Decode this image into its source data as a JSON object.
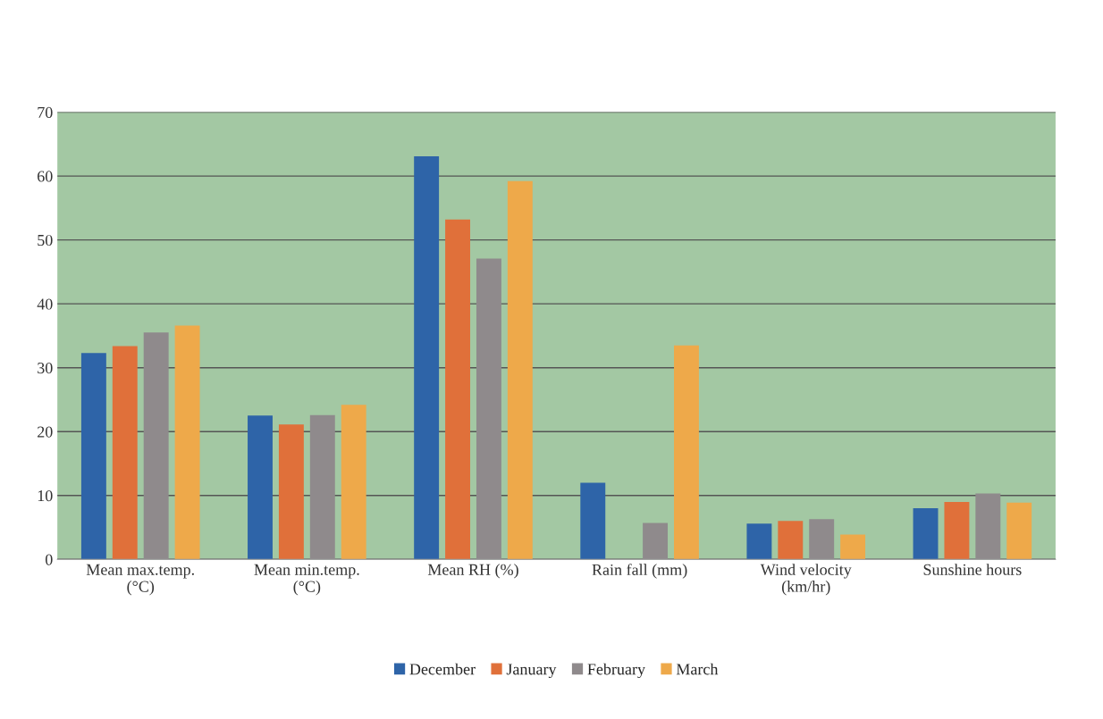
{
  "chart_data": {
    "type": "bar",
    "categories": [
      "Mean max.temp.\n(°C)",
      "Mean min.temp.\n(°C)",
      "Mean RH (%)",
      "Rain fall (mm)",
      "Wind velocity\n(km/hr)",
      "Sunshine hours"
    ],
    "series": [
      {
        "name": "December",
        "color": "#2e64a8",
        "values": [
          32.3,
          22.5,
          63.1,
          12.0,
          5.6,
          8.0
        ]
      },
      {
        "name": "January",
        "color": "#e0703a",
        "values": [
          33.4,
          21.1,
          53.2,
          null,
          6.0,
          9.0
        ]
      },
      {
        "name": "February",
        "color": "#8f8a8c",
        "values": [
          35.5,
          22.6,
          47.1,
          5.7,
          6.3,
          10.3
        ]
      },
      {
        "name": "March",
        "color": "#eea94a",
        "values": [
          36.6,
          24.2,
          59.2,
          33.5,
          3.9,
          8.9
        ]
      }
    ],
    "ylim": [
      0,
      70
    ],
    "yticks": [
      0,
      10,
      20,
      30,
      40,
      50,
      60,
      70
    ],
    "grid": "y",
    "legend": "bottom"
  }
}
